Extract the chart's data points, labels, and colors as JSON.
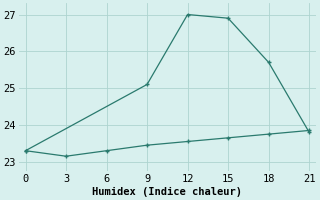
{
  "line1_x": [
    0,
    9,
    12,
    15,
    18,
    21
  ],
  "line1_y": [
    23.3,
    25.1,
    27.0,
    26.9,
    25.7,
    23.8
  ],
  "line2_x": [
    0,
    3,
    6,
    9,
    12,
    15,
    18,
    21
  ],
  "line2_y": [
    23.3,
    23.15,
    23.3,
    23.45,
    23.55,
    23.65,
    23.75,
    23.85
  ],
  "line_color": "#2a7a6e",
  "bg_color": "#d8f0ee",
  "grid_color": "#aed4d0",
  "xlabel": "Humidex (Indice chaleur)",
  "xlim": [
    -0.5,
    21.5
  ],
  "ylim": [
    22.75,
    27.3
  ],
  "xticks": [
    0,
    3,
    6,
    9,
    12,
    15,
    18,
    21
  ],
  "yticks": [
    23,
    24,
    25,
    26,
    27
  ],
  "font_family": "monospace",
  "xlabel_fontsize": 7.5,
  "tick_fontsize": 7.5,
  "linewidth": 0.9,
  "markersize": 3.5
}
